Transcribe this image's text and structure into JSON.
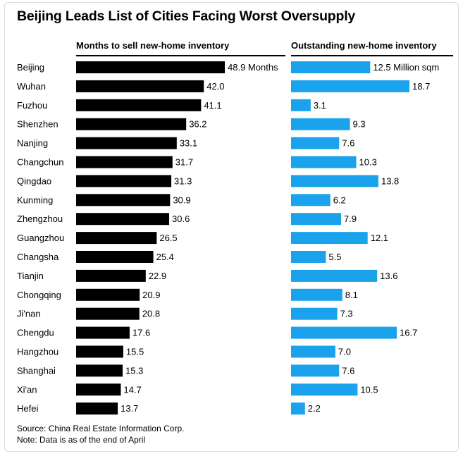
{
  "chart_data": {
    "type": "bar",
    "title": "Beijing Leads List of Cities Facing Worst Oversupply",
    "categories": [
      "Beijing",
      "Wuhan",
      "Fuzhou",
      "Shenzhen",
      "Nanjing",
      "Changchun",
      "Qingdao",
      "Kunming",
      "Zhengzhou",
      "Guangzhou",
      "Changsha",
      "Tianjin",
      "Chongqing",
      "Ji'nan",
      "Chengdu",
      "Hangzhou",
      "Shanghai",
      "Xi'an",
      "Hefei"
    ],
    "series": [
      {
        "name": "Months to sell new-home inventory",
        "values": [
          48.9,
          42.0,
          41.1,
          36.2,
          33.1,
          31.7,
          31.3,
          30.9,
          30.6,
          26.5,
          25.4,
          22.9,
          20.9,
          20.8,
          17.6,
          15.5,
          15.3,
          14.7,
          13.7
        ],
        "labels": [
          "48.9 Months",
          "42.0",
          "41.1",
          "36.2",
          "33.1",
          "31.7",
          "31.3",
          "30.9",
          "30.6",
          "26.5",
          "25.4",
          "22.9",
          "20.9",
          "20.8",
          "17.6",
          "15.5",
          "15.3",
          "14.7",
          "13.7"
        ],
        "color": "#000000"
      },
      {
        "name": "Outstanding new-home inventory",
        "values": [
          12.5,
          18.7,
          3.1,
          9.3,
          7.6,
          10.3,
          13.8,
          6.2,
          7.9,
          12.1,
          5.5,
          13.6,
          8.1,
          7.3,
          16.7,
          7.0,
          7.6,
          10.5,
          2.2
        ],
        "labels": [
          "12.5 Million sqm",
          "18.7",
          "3.1",
          "9.3",
          "7.6",
          "10.3",
          "13.8",
          "6.2",
          "7.9",
          "12.1",
          "5.5",
          "13.6",
          "8.1",
          "7.3",
          "16.7",
          "7.0",
          "7.6",
          "10.5",
          "2.2"
        ],
        "color": "#1AA3EC"
      }
    ],
    "legend": "column headers",
    "grid": false
  },
  "source_note": "Source: China Real Estate Information Corp.",
  "data_note": "Note: Data is as of the end of April"
}
